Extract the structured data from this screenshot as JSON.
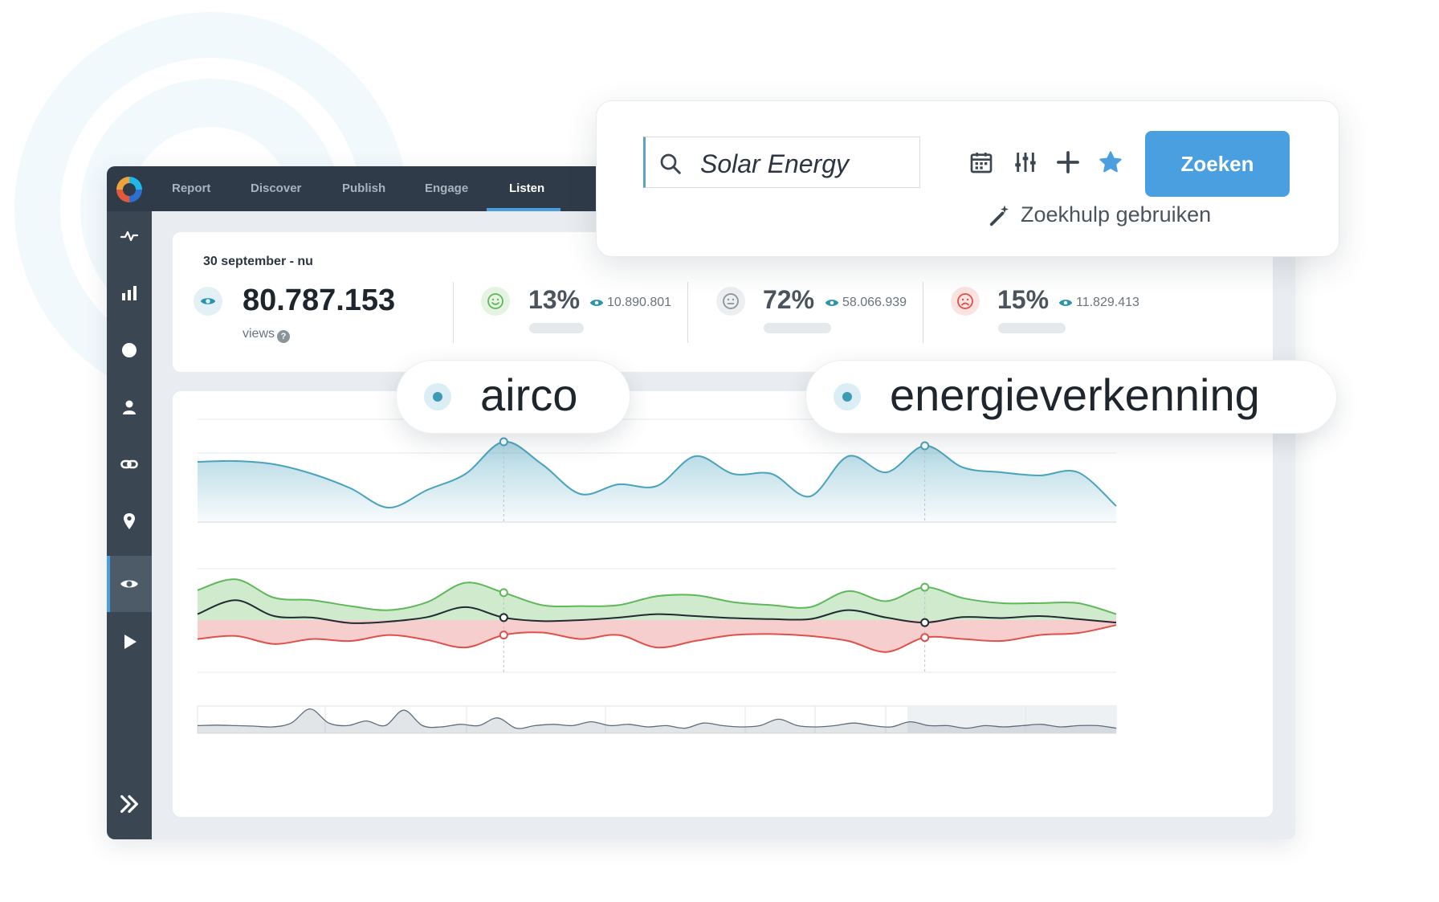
{
  "nav": {
    "tabs": [
      {
        "label": "Report"
      },
      {
        "label": "Discover"
      },
      {
        "label": "Publish"
      },
      {
        "label": "Engage"
      },
      {
        "label": "Listen",
        "active": true
      }
    ]
  },
  "sidebar": {
    "icons": [
      "pulse-icon",
      "bar-chart-icon",
      "circle-icon",
      "user-icon",
      "link-icon",
      "location-pin-icon",
      "eye-icon",
      "play-icon"
    ],
    "active": "eye-icon",
    "expand_icon": "double-chevron-right-icon"
  },
  "stats": {
    "date_range": "30 september - nu",
    "views_value": "80.787.153",
    "views_label": "views",
    "help": "?",
    "sentiments": [
      {
        "name": "positive",
        "icon": "smile-icon",
        "pct": "13%",
        "count": "10.890.801",
        "color": "#5fb85a"
      },
      {
        "name": "neutral",
        "icon": "neutral-face-icon",
        "pct": "72%",
        "count": "58.066.939",
        "color": "#8b939b"
      },
      {
        "name": "negative",
        "icon": "frown-icon",
        "pct": "15%",
        "count": "11.829.413",
        "color": "#e0504a"
      }
    ]
  },
  "search": {
    "value": "Solar Energy",
    "button_label": "Zoeken",
    "helper_label": "Zoekhulp gebruiken",
    "tool_icons": [
      "calendar-icon",
      "sliders-icon",
      "plus-icon",
      "star-icon"
    ]
  },
  "tags": [
    {
      "label": "airco"
    },
    {
      "label": "energieverkenning"
    }
  ],
  "colors": {
    "accent": "#4a9fe0",
    "topbar": "#2f3b48",
    "sidebar": "#3b4653",
    "line_teal": "#4aa3bd",
    "positive": "#5fb85a",
    "negative": "#e0504a",
    "net": "#222a32"
  },
  "chart_data": [
    {
      "type": "area",
      "series": [
        {
          "values": [
            0.75,
            0.76,
            0.72,
            0.6,
            0.42,
            0.18,
            0.4,
            0.6,
            1.0,
            0.72,
            0.35,
            0.47,
            0.45,
            0.82,
            0.6,
            0.6,
            0.32,
            0.82,
            0.62,
            0.95,
            0.68,
            0.62,
            0.58,
            0.62,
            0.2
          ]
        }
      ]
    },
    {
      "type": "area",
      "series": [
        {
          "name": "positive",
          "values": [
            0.6,
            0.82,
            0.45,
            0.4,
            0.28,
            0.2,
            0.36,
            0.75,
            0.55,
            0.3,
            0.28,
            0.3,
            0.48,
            0.5,
            0.36,
            0.3,
            0.26,
            0.58,
            0.38,
            0.66,
            0.44,
            0.34,
            0.34,
            0.34,
            0.12
          ]
        },
        {
          "name": "net",
          "values": [
            0.12,
            0.4,
            0.08,
            0.05,
            -0.06,
            -0.03,
            0.06,
            0.26,
            0.05,
            -0.02,
            0.0,
            0.05,
            0.12,
            0.08,
            0.04,
            0.02,
            0.02,
            0.2,
            0.05,
            -0.05,
            0.06,
            0.04,
            0.08,
            0.02,
            -0.05
          ]
        },
        {
          "name": "negative",
          "values": [
            -0.38,
            -0.32,
            -0.48,
            -0.38,
            -0.42,
            -0.3,
            -0.4,
            -0.55,
            -0.3,
            -0.25,
            -0.38,
            -0.3,
            -0.55,
            -0.42,
            -0.3,
            -0.28,
            -0.32,
            -0.42,
            -0.64,
            -0.35,
            -0.38,
            -0.42,
            -0.3,
            -0.26,
            -0.1
          ]
        }
      ]
    },
    {
      "type": "area",
      "series": [
        {
          "values": [
            0.3,
            0.32,
            0.3,
            0.28,
            0.25,
            0.4,
            0.95,
            0.4,
            0.3,
            0.48,
            0.3,
            0.9,
            0.3,
            0.25,
            0.35,
            0.3,
            0.6,
            0.2,
            0.3,
            0.35,
            0.3,
            0.45,
            0.3,
            0.35,
            0.25,
            0.3,
            0.2,
            0.4,
            0.3,
            0.25,
            0.3,
            0.55,
            0.3,
            0.25,
            0.3,
            0.4,
            0.3,
            0.25,
            0.45,
            0.3,
            0.3,
            0.2,
            0.3,
            0.25,
            0.3,
            0.35,
            0.25,
            0.3,
            0.3,
            0.2
          ]
        }
      ]
    }
  ]
}
